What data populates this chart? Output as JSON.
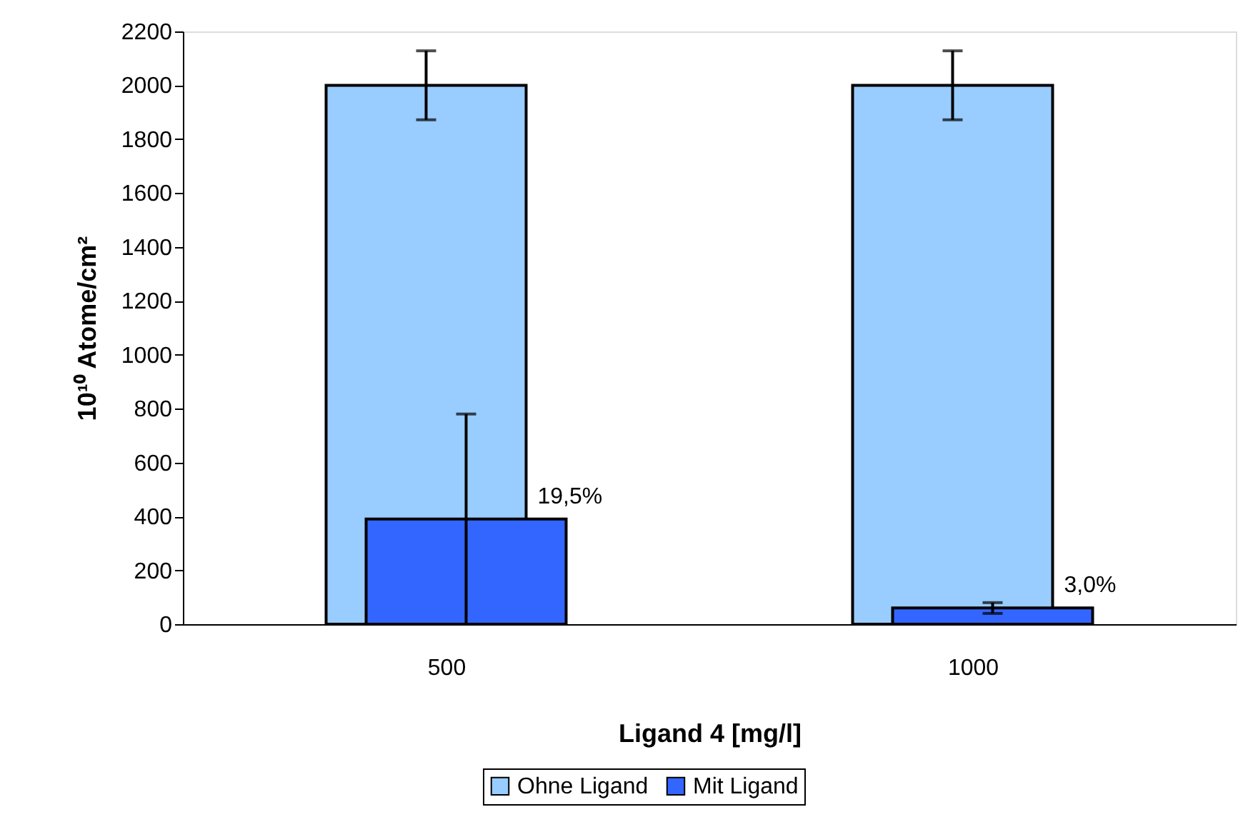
{
  "chart_data": {
    "type": "bar",
    "xlabel": "Ligand 4 [mg/l]",
    "ylabel": "10¹⁰ Atome/cm²",
    "categories": [
      "500",
      "1000"
    ],
    "series": [
      {
        "name": "Ohne Ligand",
        "color": "#99ccff",
        "values": [
          2000,
          2000
        ],
        "errors": [
          128,
          128
        ]
      },
      {
        "name": "Mit Ligand",
        "color": "#3366ff",
        "values": [
          390,
          60
        ],
        "errors": [
          390,
          20
        ]
      }
    ],
    "annotations": [
      "19,5%",
      "3,0%"
    ],
    "ylim": [
      0,
      2200
    ],
    "yticks": [
      0,
      200,
      400,
      600,
      800,
      1000,
      1200,
      1400,
      1600,
      1800,
      2000,
      2200
    ],
    "grid": false,
    "legend": "bottom"
  }
}
